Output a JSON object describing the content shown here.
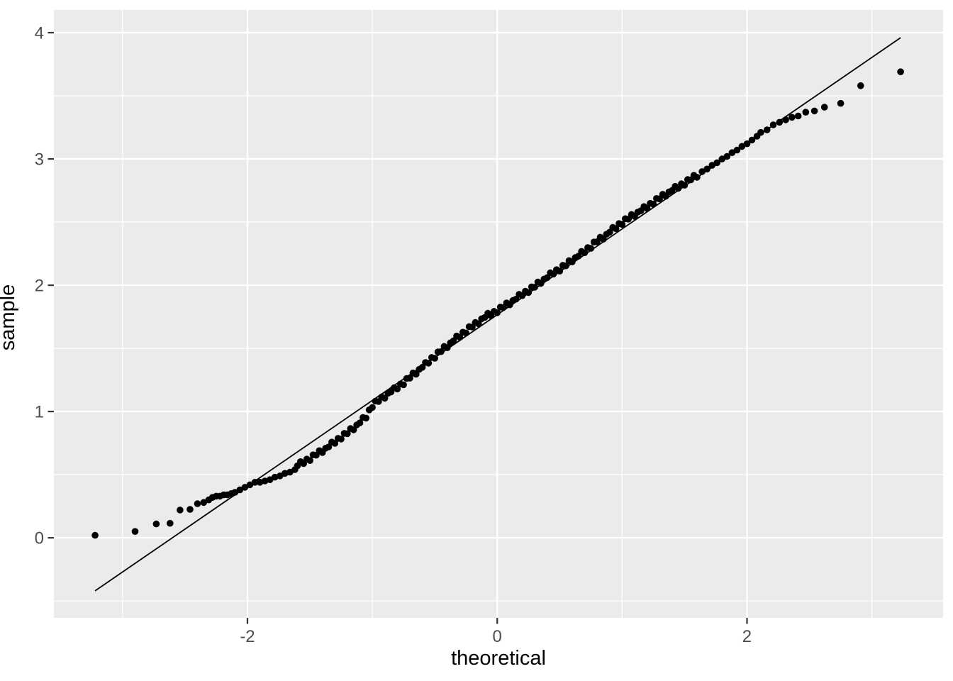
{
  "chart_data": {
    "type": "scatter",
    "title": "",
    "xlabel": "theoretical",
    "ylabel": "sample",
    "xlim": [
      -3.55,
      3.57
    ],
    "ylim": [
      -0.634,
      4.18
    ],
    "x_ticks": {
      "major": [
        -2,
        0,
        2
      ],
      "labels": [
        "-2",
        "0",
        "2"
      ],
      "minor": [
        -3,
        -1,
        1,
        3
      ]
    },
    "y_ticks": {
      "major": [
        0,
        1,
        2,
        3,
        4
      ],
      "labels": [
        "0",
        "1",
        "2",
        "3",
        "4"
      ],
      "minor": [
        -0.5,
        0.5,
        1.5,
        2.5,
        3.5
      ]
    },
    "grid": "on",
    "legend": "none",
    "qq_line": {
      "x1": -3.22,
      "y1": -0.42,
      "x2": 3.23,
      "y2": 3.96
    },
    "colors": {
      "background": "#FFFFFF",
      "panel_background": "#EBEBEB",
      "grid_major": "#FFFFFF",
      "grid_minor": "#FFFFFF",
      "point": "#000000",
      "qq_line": "#000000",
      "tick_mark": "#333333",
      "tick_label": "#4D4D4D",
      "axis_title": "#000000"
    },
    "points": [
      [
        -3.22,
        0.02
      ],
      [
        -2.9,
        0.05
      ],
      [
        -2.73,
        0.11
      ],
      [
        -2.62,
        0.115
      ],
      [
        -2.54,
        0.22
      ],
      [
        -2.46,
        0.225
      ],
      [
        -2.4,
        0.27
      ],
      [
        -2.35,
        0.28
      ],
      [
        -2.31,
        0.3
      ],
      [
        -2.28,
        0.32
      ],
      [
        -2.25,
        0.33
      ],
      [
        -2.22,
        0.33
      ],
      [
        -2.19,
        0.34
      ],
      [
        -2.16,
        0.34
      ],
      [
        -2.13,
        0.35
      ],
      [
        -2.1,
        0.36
      ],
      [
        -2.06,
        0.38
      ],
      [
        -2.02,
        0.4
      ],
      [
        -1.98,
        0.42
      ],
      [
        -1.94,
        0.44
      ],
      [
        -1.9,
        0.44
      ],
      [
        -1.86,
        0.45
      ],
      [
        -1.82,
        0.46
      ],
      [
        -1.78,
        0.48
      ],
      [
        -1.74,
        0.49
      ],
      [
        -1.7,
        0.51
      ],
      [
        -1.66,
        0.52
      ],
      [
        -1.62,
        0.54
      ],
      [
        -1.6,
        0.57
      ],
      [
        -1.575,
        0.603
      ],
      [
        -1.55,
        0.588
      ],
      [
        -1.525,
        0.623
      ],
      [
        -1.5,
        0.612
      ],
      [
        -1.475,
        0.657
      ],
      [
        -1.45,
        0.654
      ],
      [
        -1.425,
        0.69
      ],
      [
        -1.4,
        0.675
      ],
      [
        -1.375,
        0.709
      ],
      [
        -1.35,
        0.72
      ],
      [
        -1.325,
        0.758
      ],
      [
        -1.3,
        0.748
      ],
      [
        -1.275,
        0.788
      ],
      [
        -1.25,
        0.782
      ],
      [
        -1.225,
        0.827
      ],
      [
        -1.2,
        0.824
      ],
      [
        -1.175,
        0.865
      ],
      [
        -1.15,
        0.855
      ],
      [
        -1.125,
        0.894
      ],
      [
        -1.1,
        0.91
      ],
      [
        -1.075,
        0.953
      ],
      [
        -1.05,
        0.948
      ],
      [
        -1.025,
        1.013
      ],
      [
        -1.0,
        1.032
      ],
      [
        -0.975,
        1.082
      ],
      [
        -0.95,
        1.079
      ],
      [
        -0.925,
        1.115
      ],
      [
        -0.9,
        1.105
      ],
      [
        -0.875,
        1.144
      ],
      [
        -0.85,
        1.155
      ],
      [
        -0.825,
        1.188
      ],
      [
        -0.8,
        1.178
      ],
      [
        -0.775,
        1.218
      ],
      [
        -0.75,
        1.212
      ],
      [
        -0.725,
        1.262
      ],
      [
        -0.7,
        1.264
      ],
      [
        -0.675,
        1.305
      ],
      [
        -0.65,
        1.295
      ],
      [
        -0.625,
        1.334
      ],
      [
        -0.6,
        1.35
      ],
      [
        -0.575,
        1.388
      ],
      [
        -0.55,
        1.383
      ],
      [
        -0.525,
        1.428
      ],
      [
        -0.5,
        1.422
      ],
      [
        -0.475,
        1.472
      ],
      [
        -0.45,
        1.474
      ],
      [
        -0.425,
        1.515
      ],
      [
        -0.4,
        1.505
      ],
      [
        -0.375,
        1.544
      ],
      [
        -0.35,
        1.56
      ],
      [
        -0.325,
        1.598
      ],
      [
        -0.3,
        1.588
      ],
      [
        -0.275,
        1.628
      ],
      [
        -0.25,
        1.622
      ],
      [
        -0.225,
        1.672
      ],
      [
        -0.2,
        1.669
      ],
      [
        -0.175,
        1.705
      ],
      [
        -0.15,
        1.695
      ],
      [
        -0.125,
        1.734
      ],
      [
        -0.1,
        1.745
      ],
      [
        -0.075,
        1.778
      ],
      [
        -0.05,
        1.758
      ],
      [
        -0.025,
        1.793
      ],
      [
        0.0,
        1.782
      ],
      [
        0.025,
        1.827
      ],
      [
        0.05,
        1.824
      ],
      [
        0.075,
        1.86
      ],
      [
        0.1,
        1.845
      ],
      [
        0.125,
        1.879
      ],
      [
        0.15,
        1.89
      ],
      [
        0.175,
        1.928
      ],
      [
        0.2,
        1.918
      ],
      [
        0.225,
        1.953
      ],
      [
        0.25,
        1.942
      ],
      [
        0.275,
        1.987
      ],
      [
        0.3,
        1.984
      ],
      [
        0.325,
        2.025
      ],
      [
        0.35,
        2.015
      ],
      [
        0.375,
        2.049
      ],
      [
        0.4,
        2.06
      ],
      [
        0.425,
        2.098
      ],
      [
        0.45,
        2.088
      ],
      [
        0.475,
        2.123
      ],
      [
        0.5,
        2.112
      ],
      [
        0.525,
        2.157
      ],
      [
        0.55,
        2.154
      ],
      [
        0.575,
        2.195
      ],
      [
        0.6,
        2.185
      ],
      [
        0.625,
        2.219
      ],
      [
        0.65,
        2.23
      ],
      [
        0.675,
        2.268
      ],
      [
        0.7,
        2.258
      ],
      [
        0.725,
        2.298
      ],
      [
        0.75,
        2.292
      ],
      [
        0.775,
        2.342
      ],
      [
        0.8,
        2.344
      ],
      [
        0.825,
        2.38
      ],
      [
        0.85,
        2.365
      ],
      [
        0.875,
        2.404
      ],
      [
        0.9,
        2.42
      ],
      [
        0.925,
        2.458
      ],
      [
        0.95,
        2.448
      ],
      [
        0.975,
        2.488
      ],
      [
        1.0,
        2.482
      ],
      [
        1.025,
        2.527
      ],
      [
        1.05,
        2.524
      ],
      [
        1.075,
        2.56
      ],
      [
        1.1,
        2.545
      ],
      [
        1.125,
        2.579
      ],
      [
        1.15,
        2.59
      ],
      [
        1.175,
        2.623
      ],
      [
        1.2,
        2.608
      ],
      [
        1.225,
        2.648
      ],
      [
        1.25,
        2.642
      ],
      [
        1.275,
        2.687
      ],
      [
        1.3,
        2.684
      ],
      [
        1.325,
        2.72
      ],
      [
        1.35,
        2.705
      ],
      [
        1.375,
        2.739
      ],
      [
        1.4,
        2.75
      ],
      [
        1.425,
        2.783
      ],
      [
        1.45,
        2.768
      ],
      [
        1.475,
        2.803
      ],
      [
        1.5,
        2.792
      ],
      [
        1.525,
        2.837
      ],
      [
        1.55,
        2.834
      ],
      [
        1.575,
        2.87
      ],
      [
        1.6,
        2.855
      ],
      [
        1.64,
        2.9
      ],
      [
        1.68,
        2.92
      ],
      [
        1.72,
        2.95
      ],
      [
        1.76,
        2.97
      ],
      [
        1.8,
        3.0
      ],
      [
        1.84,
        3.02
      ],
      [
        1.88,
        3.05
      ],
      [
        1.92,
        3.07
      ],
      [
        1.96,
        3.1
      ],
      [
        2.0,
        3.12
      ],
      [
        2.04,
        3.15
      ],
      [
        2.08,
        3.18
      ],
      [
        2.11,
        3.21
      ],
      [
        2.16,
        3.23
      ],
      [
        2.21,
        3.27
      ],
      [
        2.26,
        3.29
      ],
      [
        2.31,
        3.31
      ],
      [
        2.36,
        3.33
      ],
      [
        2.41,
        3.34
      ],
      [
        2.47,
        3.37
      ],
      [
        2.54,
        3.38
      ],
      [
        2.62,
        3.41
      ],
      [
        2.75,
        3.44
      ],
      [
        2.91,
        3.58
      ],
      [
        3.23,
        3.69
      ]
    ]
  }
}
